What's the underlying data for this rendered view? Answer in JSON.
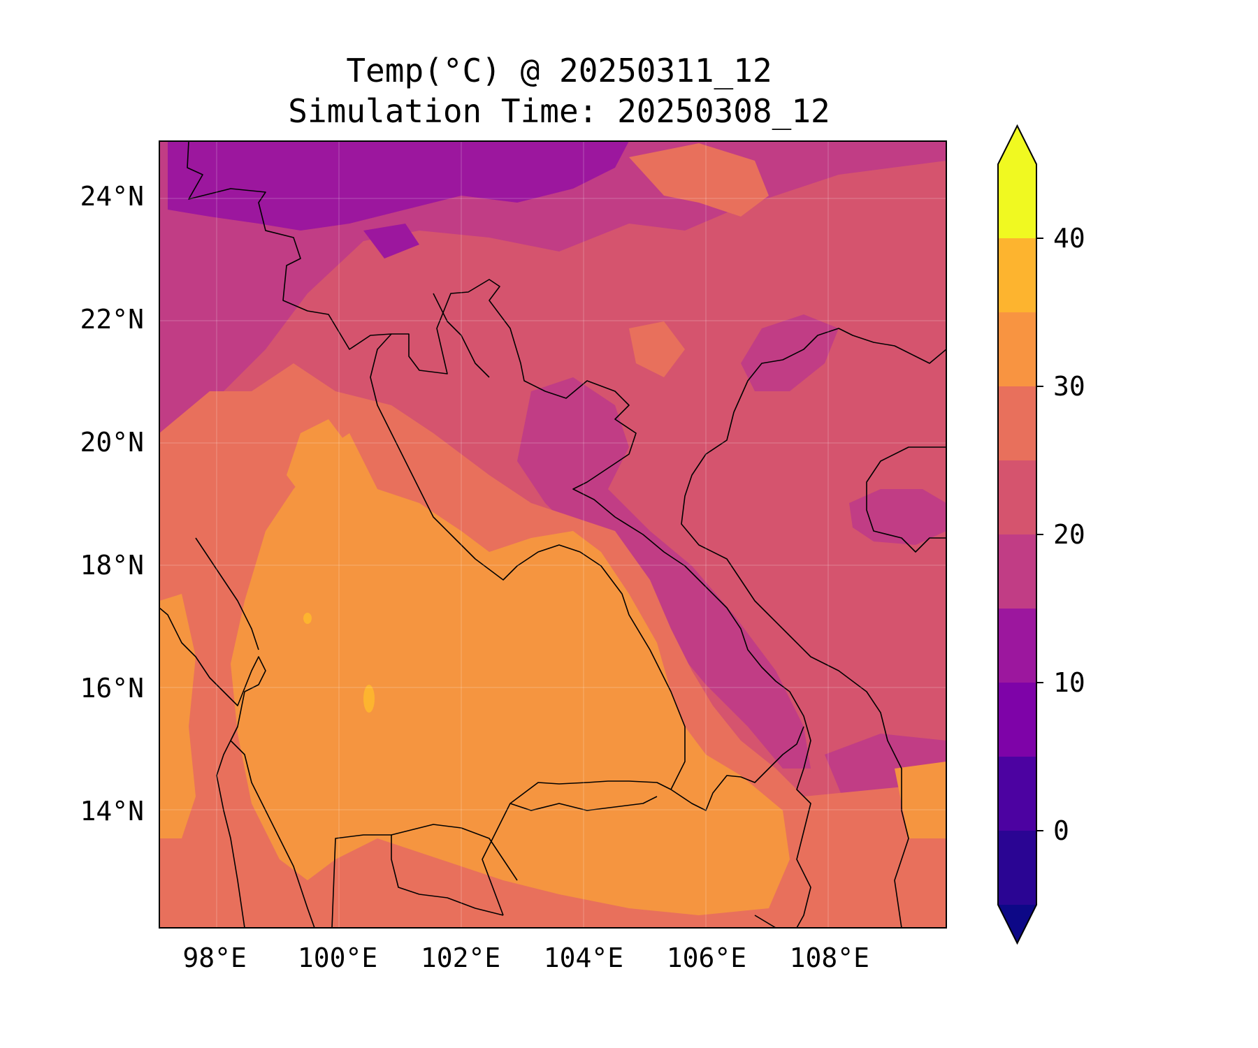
{
  "title_line_1": "Temp(°C) @ 20250311_12",
  "title_line_2": "Simulation Time: 20250308_12",
  "chart_data": {
    "type": "heatmap",
    "variable": "Temp(°C)",
    "map_extent": {
      "lon": [
        97.1,
        109.9
      ],
      "lat": [
        12.1,
        24.9
      ]
    },
    "x_ticks": [
      "98°E",
      "100°E",
      "102°E",
      "104°E",
      "106°E",
      "108°E"
    ],
    "x_tick_values": [
      98,
      100,
      102,
      104,
      106,
      108
    ],
    "y_ticks": [
      "24°N",
      "22°N",
      "20°N",
      "18°N",
      "16°N",
      "14°N"
    ],
    "y_tick_values": [
      24,
      22,
      20,
      18,
      16,
      14
    ],
    "grid": true,
    "colorbar": {
      "levels": [
        -5,
        0,
        5,
        10,
        15,
        20,
        25,
        30,
        35,
        40,
        45
      ],
      "tick_labels": [
        "0",
        "10",
        "20",
        "30",
        "40"
      ],
      "tick_values": [
        0,
        10,
        20,
        30,
        40
      ],
      "extend": "both",
      "colors": [
        "#0d0887",
        "#2a0593",
        "#4c02a1",
        "#7e03a8",
        "#9c179e",
        "#c13d85",
        "#d5546e",
        "#e8705c",
        "#f89441",
        "#fdb42f",
        "#f0f921"
      ]
    }
  },
  "colors": {
    "t10": "#9c179e",
    "t15": "#c13d85",
    "t20": "#d5546e",
    "t25": "#e8705c",
    "t30": "#f59540",
    "t35": "#fdb42f",
    "coastline": "#000000"
  }
}
